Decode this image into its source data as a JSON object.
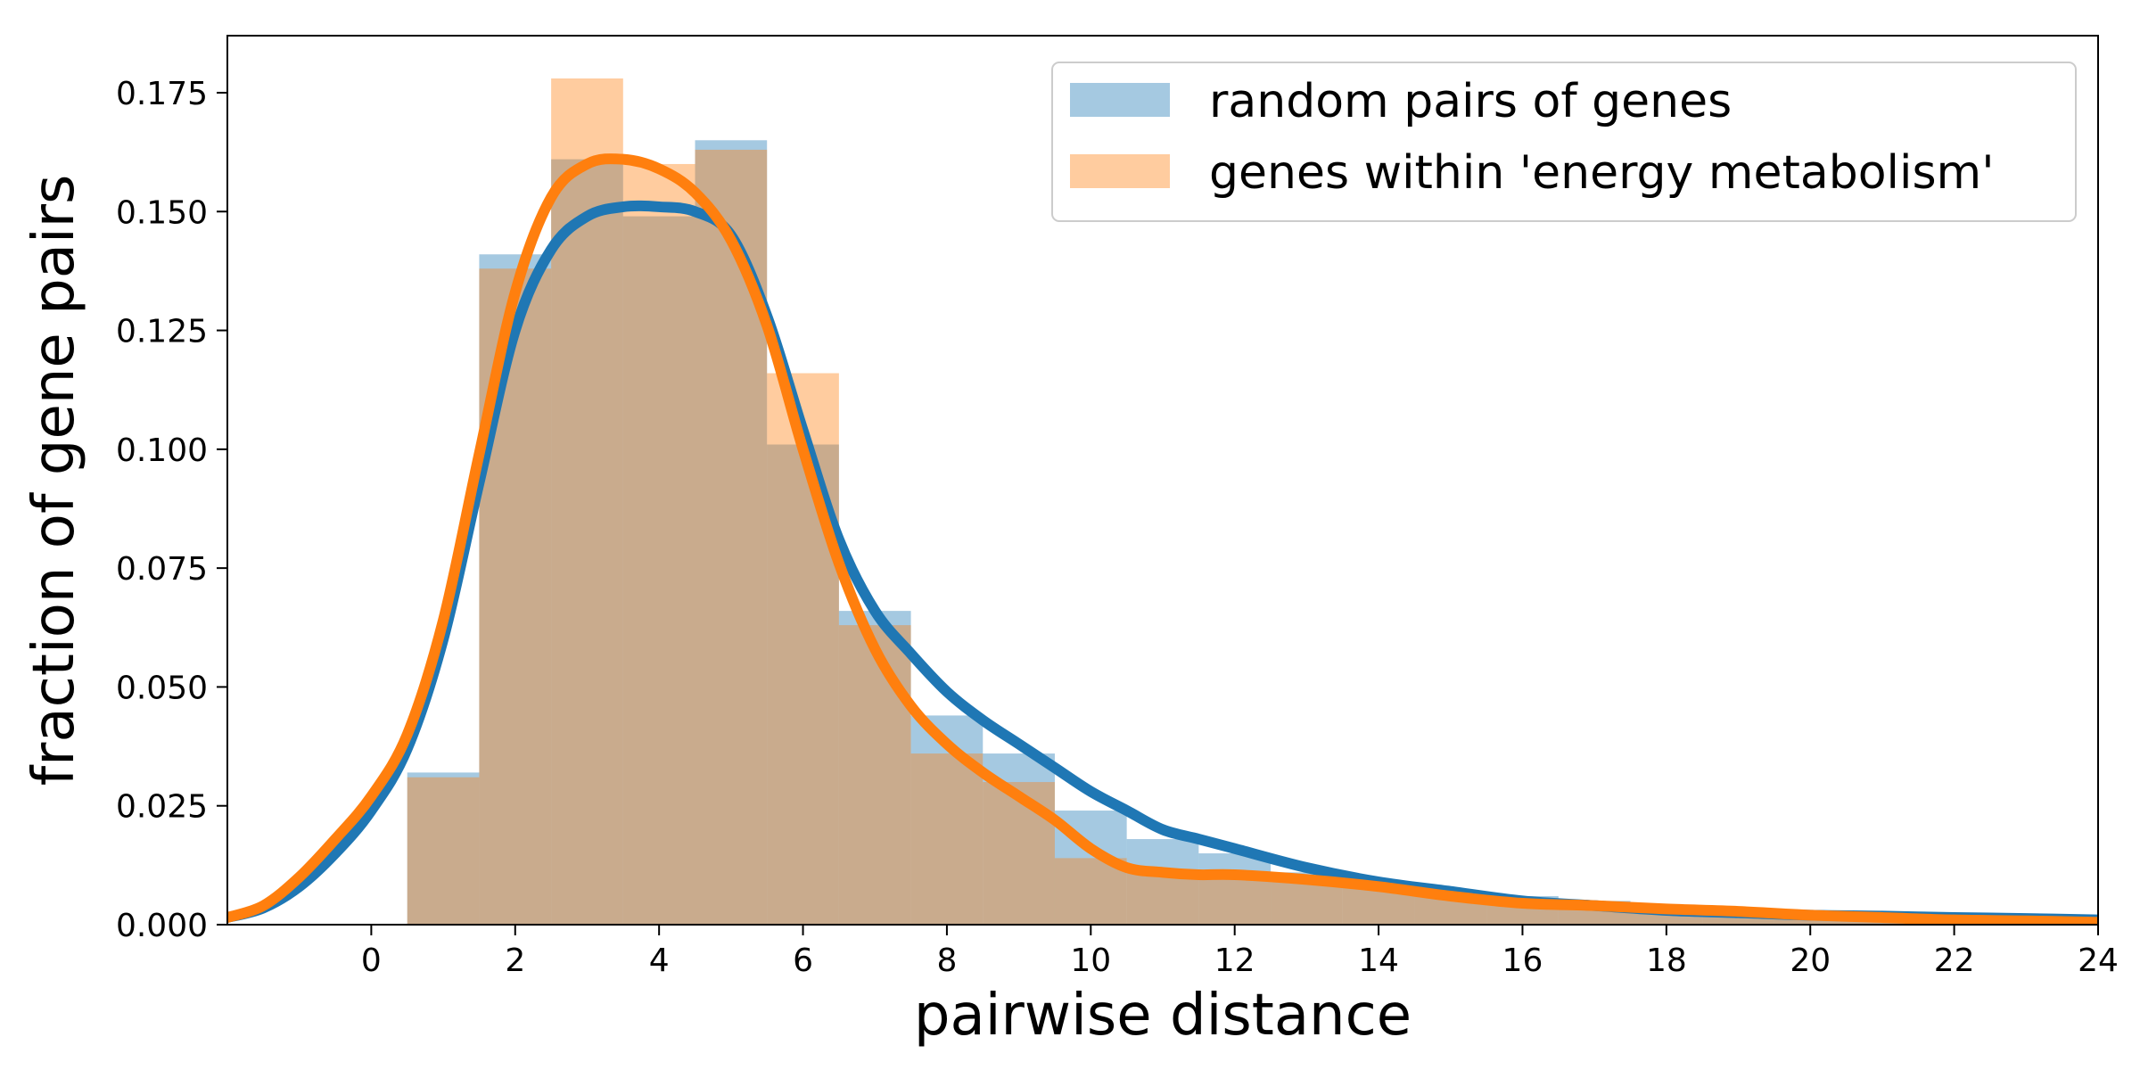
{
  "chart_data": {
    "type": "bar",
    "title": "",
    "xlabel": "pairwise distance",
    "ylabel": "fraction of gene pairs",
    "xlim": [
      -2,
      24
    ],
    "ylim": [
      0,
      0.187
    ],
    "x_ticks": [
      0,
      2,
      4,
      6,
      8,
      10,
      12,
      14,
      16,
      18,
      20,
      22,
      24
    ],
    "y_ticks": [
      0.0,
      0.025,
      0.05,
      0.075,
      0.1,
      0.125,
      0.15,
      0.175
    ],
    "x_tick_labels": [
      "0",
      "2",
      "4",
      "6",
      "8",
      "10",
      "12",
      "14",
      "16",
      "18",
      "20",
      "22",
      "24"
    ],
    "y_tick_labels": [
      "0.000",
      "0.025",
      "0.050",
      "0.075",
      "0.100",
      "0.125",
      "0.150",
      "0.175"
    ],
    "legend_position": "top-right",
    "grid": false,
    "bin_edges": [
      0.5,
      1.5,
      2.5,
      3.5,
      4.5,
      5.5,
      6.5,
      7.5,
      8.5,
      9.5,
      10.5,
      11.5,
      12.5,
      13.5,
      14.5,
      15.5,
      16.5,
      17.5,
      18.5,
      19.5,
      20.5,
      21.5,
      22.5,
      23.5,
      24.5
    ],
    "series": [
      {
        "name": "random pairs of genes",
        "hist_color": "#1f77b4",
        "line_color": "#1f77b4",
        "hist_values": [
          0.032,
          0.141,
          0.161,
          0.149,
          0.165,
          0.101,
          0.066,
          0.044,
          0.036,
          0.024,
          0.018,
          0.015,
          0.011,
          0.009,
          0.007,
          0.006,
          0.005,
          0.004,
          0.003,
          0.002,
          0.002,
          0.002,
          0.001,
          0.001
        ],
        "kde_x": [
          -2,
          -1.5,
          -1,
          -0.5,
          0,
          0.5,
          1,
          1.5,
          2,
          2.5,
          3,
          3.5,
          4,
          4.5,
          5,
          5.5,
          6,
          6.5,
          7,
          7.5,
          8,
          8.5,
          9,
          9.5,
          10,
          10.5,
          11,
          11.5,
          12,
          13,
          14,
          15,
          16,
          17,
          18,
          19,
          20,
          21,
          22,
          23,
          24
        ],
        "kde_y": [
          0.0015,
          0.0035,
          0.008,
          0.015,
          0.024,
          0.037,
          0.06,
          0.093,
          0.125,
          0.142,
          0.149,
          0.151,
          0.151,
          0.15,
          0.145,
          0.128,
          0.104,
          0.081,
          0.066,
          0.057,
          0.049,
          0.043,
          0.038,
          0.033,
          0.028,
          0.024,
          0.02,
          0.018,
          0.016,
          0.012,
          0.009,
          0.007,
          0.005,
          0.004,
          0.003,
          0.0025,
          0.002,
          0.0018,
          0.0015,
          0.0013,
          0.001
        ]
      },
      {
        "name": "genes within 'energy metabolism'",
        "hist_color": "#ff7f0e",
        "line_color": "#ff7f0e",
        "hist_values": [
          0.031,
          0.138,
          0.178,
          0.16,
          0.163,
          0.116,
          0.063,
          0.036,
          0.03,
          0.014,
          0.011,
          0.011,
          0.01,
          0.009,
          0.006,
          0.005,
          0.004,
          0.004,
          0.003,
          0.002,
          0.001,
          0.001,
          0.001,
          0.0005
        ],
        "kde_x": [
          -2,
          -1.5,
          -1,
          -0.5,
          0,
          0.5,
          1,
          1.5,
          2,
          2.5,
          3,
          3.5,
          4,
          4.5,
          5,
          5.5,
          6,
          6.5,
          7,
          7.5,
          8,
          8.5,
          9,
          9.5,
          10,
          10.5,
          11,
          11.5,
          12,
          13,
          14,
          15,
          16,
          17,
          18,
          19,
          20,
          21,
          22,
          23,
          24
        ],
        "kde_y": [
          0.0015,
          0.004,
          0.01,
          0.018,
          0.027,
          0.04,
          0.064,
          0.099,
          0.133,
          0.153,
          0.16,
          0.161,
          0.159,
          0.154,
          0.144,
          0.126,
          0.1,
          0.076,
          0.058,
          0.046,
          0.038,
          0.032,
          0.027,
          0.022,
          0.016,
          0.012,
          0.011,
          0.0105,
          0.0105,
          0.0095,
          0.008,
          0.006,
          0.0045,
          0.004,
          0.0033,
          0.0028,
          0.002,
          0.0015,
          0.001,
          0.0008,
          0.0005
        ]
      }
    ]
  }
}
